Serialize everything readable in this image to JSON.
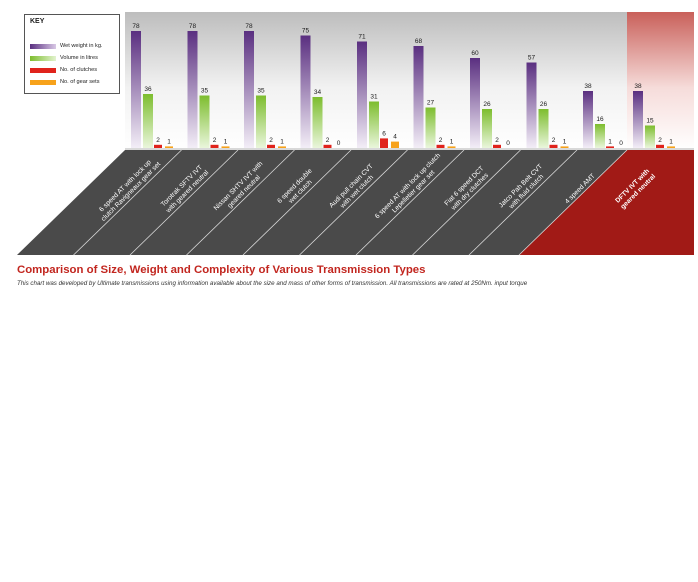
{
  "chart_data": {
    "type": "bar",
    "title": "Comparison of Size, Weight and Complexity of Various Transmission Types",
    "note": "This chart was developed by Ultimate transmissions using information available about the size and mass of other forms of transmission. All transmissions are rated at 250Nm. input torque",
    "legend_title": "KEY",
    "legend_placement": "top-left",
    "categories": [
      [
        "6 speed AT with lock up",
        "clutch Ravigneaux gear set"
      ],
      [
        "Torotrak SFTV IVT",
        "with geared neutral"
      ],
      [
        "Nissan SHTV IVT with",
        "geared neutral"
      ],
      [
        "6 speed double",
        "wet clutch"
      ],
      [
        "Audi pull chain CVT",
        "with wet clutch"
      ],
      [
        "6 speed AT with lock up clutch",
        "Lepelletier gear set"
      ],
      [
        "Fiat 6 speed DCT",
        "with dry clutches"
      ],
      [
        "Jatco Pah Belt CVT",
        "with fluid clutch"
      ],
      [
        "4 speed AMT"
      ],
      [
        "DFTV IVT with",
        "geared neutral"
      ]
    ],
    "highlighted_category_index": 9,
    "series": [
      {
        "name": "Wet weight in kg.",
        "color": "#6b3f8f",
        "values": [
          78,
          78,
          78,
          75,
          71,
          68,
          60,
          57,
          38,
          38
        ]
      },
      {
        "name": "Volume in litres",
        "color": "#8cc63f",
        "values": [
          36,
          35,
          35,
          34,
          31,
          27,
          26,
          26,
          16,
          15
        ]
      },
      {
        "name": "No. of clutches",
        "color": "#e0231c",
        "values": [
          2,
          2,
          2,
          2,
          6,
          2,
          2,
          2,
          1,
          2
        ]
      },
      {
        "name": "No. of gear sets",
        "color": "#f7a21b",
        "values": [
          1,
          1,
          1,
          0,
          4,
          1,
          0,
          1,
          0,
          1
        ]
      }
    ],
    "ylim": [
      0,
      85
    ],
    "grid": false
  }
}
